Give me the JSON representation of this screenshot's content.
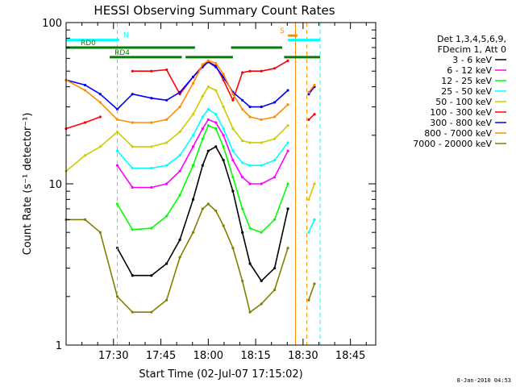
{
  "chart_data": {
    "type": "line",
    "title": "HESSI Observing Summary Count Rates",
    "xlabel": "Start Time (02-Jul-07 17:15:02)",
    "ylabel": "Count Rate (s⁻¹ detector⁻¹)",
    "y_scale": "log",
    "ylim": [
      1,
      100
    ],
    "xlim": [
      "17:15",
      "18:53"
    ],
    "x_ticks": [
      "17:30",
      "17:45",
      "18:00",
      "18:15",
      "18:30",
      "18:45"
    ],
    "y_ticks": [
      "1",
      "10",
      "100"
    ],
    "legend_position": "right",
    "legend_header": [
      "Det 1,3,4,5,6,9,",
      "FDecim 1, Att 0"
    ],
    "footer": "8-Jan-2010 04:53",
    "series": [
      {
        "name": "3 - 6 keV",
        "color": "#000000",
        "x": [
          17.25,
          17.35,
          17.43,
          17.52,
          17.6,
          17.7,
          17.78,
          17.85,
          17.92,
          17.97,
          18.0,
          18.04,
          18.08,
          18.13,
          18.18,
          18.22,
          18.28,
          18.35,
          18.42,
          18.48,
          18.53,
          18.56
        ],
        "y": [
          null,
          null,
          null,
          4.0,
          2.7,
          2.7,
          3.2,
          4.5,
          8,
          13,
          16,
          17,
          14,
          9,
          5,
          3.2,
          2.5,
          3,
          7,
          null,
          null,
          null
        ]
      },
      {
        "name": "6 - 12 keV",
        "color": "#ff00ff",
        "x": [
          17.25,
          17.35,
          17.43,
          17.52,
          17.6,
          17.7,
          17.78,
          17.85,
          17.92,
          17.97,
          18.0,
          18.04,
          18.08,
          18.13,
          18.18,
          18.22,
          18.28,
          18.35,
          18.42,
          18.48,
          18.53,
          18.56
        ],
        "y": [
          null,
          null,
          null,
          13,
          9.5,
          9.5,
          10,
          12,
          17,
          22,
          25,
          24,
          20,
          14,
          11,
          10,
          10,
          11,
          16,
          null,
          null,
          null
        ]
      },
      {
        "name": "12 - 25 keV",
        "color": "#00ff00",
        "x": [
          17.25,
          17.35,
          17.43,
          17.52,
          17.6,
          17.7,
          17.78,
          17.85,
          17.92,
          17.97,
          18.0,
          18.04,
          18.08,
          18.13,
          18.18,
          18.22,
          18.28,
          18.35,
          18.42,
          18.48,
          18.53,
          18.56
        ],
        "y": [
          null,
          null,
          null,
          7.5,
          5.2,
          5.3,
          6.3,
          8.5,
          13,
          19,
          23,
          22,
          17,
          11,
          7,
          5.3,
          5,
          6,
          10,
          null,
          null,
          null
        ]
      },
      {
        "name": "25 - 50 keV",
        "color": "#00ffff",
        "x": [
          17.25,
          17.35,
          17.43,
          17.52,
          17.6,
          17.7,
          17.78,
          17.85,
          17.92,
          17.97,
          18.0,
          18.04,
          18.08,
          18.13,
          18.18,
          18.22,
          18.28,
          18.35,
          18.42,
          18.48,
          18.53,
          18.56
        ],
        "y": [
          null,
          null,
          null,
          16,
          12.5,
          12.5,
          13,
          15,
          20,
          26,
          29,
          27,
          22,
          16,
          13.5,
          13,
          13,
          14,
          18,
          null,
          5,
          6
        ]
      },
      {
        "name": "50 - 100 keV",
        "color": "#cccc00",
        "x": [
          17.25,
          17.35,
          17.43,
          17.52,
          17.6,
          17.7,
          17.78,
          17.85,
          17.92,
          17.97,
          18.0,
          18.04,
          18.08,
          18.13,
          18.18,
          18.22,
          18.28,
          18.35,
          18.42,
          18.48,
          18.53,
          18.56
        ],
        "y": [
          12,
          15,
          17,
          21,
          17,
          17,
          18,
          21,
          27,
          35,
          40,
          38,
          30,
          22,
          18.5,
          18,
          18,
          19,
          23,
          null,
          8,
          10
        ]
      },
      {
        "name": "100 - 300 keV",
        "color": "#ff0000",
        "x": [
          17.25,
          17.35,
          17.43,
          17.52,
          17.6,
          17.7,
          17.78,
          17.85,
          17.92,
          17.97,
          18.0,
          18.04,
          18.08,
          18.13,
          18.18,
          18.22,
          18.28,
          18.35,
          18.42,
          18.48,
          18.53,
          18.56
        ],
        "y": [
          22,
          24,
          26,
          null,
          50,
          50,
          51,
          36,
          46,
          54,
          57,
          54,
          44,
          33,
          49,
          50,
          50,
          52,
          58,
          null,
          25,
          27
        ]
      },
      {
        "name": "300 - 800 keV",
        "color": "#0000ff",
        "x": [
          17.25,
          17.35,
          17.43,
          17.52,
          17.6,
          17.7,
          17.78,
          17.85,
          17.92,
          17.97,
          18.0,
          18.04,
          18.08,
          18.13,
          18.18,
          18.22,
          18.28,
          18.35,
          18.42,
          18.48,
          18.53,
          18.56
        ],
        "y": [
          44,
          41,
          36,
          29,
          36,
          34,
          33,
          37,
          46,
          53,
          57,
          53,
          46,
          37,
          33,
          30,
          30,
          32,
          38,
          null,
          36,
          40
        ]
      },
      {
        "name": "800 - 7000 keV",
        "color": "#ff8c00",
        "x": [
          17.25,
          17.35,
          17.43,
          17.52,
          17.6,
          17.7,
          17.78,
          17.85,
          17.92,
          17.97,
          18.0,
          18.04,
          18.08,
          18.13,
          18.18,
          18.22,
          18.28,
          18.35,
          18.42,
          18.48,
          18.53,
          18.56
        ],
        "y": [
          44,
          38,
          32,
          25,
          24,
          24,
          25,
          30,
          42,
          55,
          58,
          56,
          48,
          36,
          29,
          26,
          25,
          26,
          31,
          null,
          37,
          41
        ]
      },
      {
        "name": "7000 - 20000 keV",
        "color": "#808000",
        "x": [
          17.25,
          17.35,
          17.43,
          17.52,
          17.6,
          17.7,
          17.78,
          17.85,
          17.92,
          17.97,
          18.0,
          18.04,
          18.08,
          18.13,
          18.18,
          18.22,
          18.28,
          18.35,
          18.42,
          18.48,
          18.53,
          18.56
        ],
        "y": [
          6,
          6,
          5,
          2.0,
          1.6,
          1.6,
          1.9,
          3.5,
          5,
          7,
          7.5,
          6.8,
          5.5,
          4,
          2.5,
          1.6,
          1.8,
          2.2,
          4,
          null,
          1.9,
          2.4
        ]
      }
    ],
    "flag_bars": [
      {
        "label": "N",
        "color": "#00ffff",
        "x0": 17.25,
        "x1": 17.53,
        "y": 78
      },
      {
        "label": "RD0",
        "color": "#008000",
        "x0": 17.25,
        "x1": 17.93,
        "y": 70
      },
      {
        "label": "RD4",
        "color": "#008000",
        "x0": 17.48,
        "x1": 17.86,
        "y": 61
      },
      {
        "label": "",
        "color": "#008000",
        "x0": 17.88,
        "x1": 18.13,
        "y": 61
      },
      {
        "label": "",
        "color": "#008000",
        "x0": 18.12,
        "x1": 18.39,
        "y": 70
      },
      {
        "label": "",
        "color": "#008000",
        "x0": 18.4,
        "x1": 18.59,
        "y": 61
      },
      {
        "label": "S",
        "color": "#ff8c00",
        "x0": 18.42,
        "x1": 18.47,
        "y": 83
      },
      {
        "label": "",
        "color": "#00ffff",
        "x0": 18.42,
        "x1": 18.59,
        "y": 78
      }
    ],
    "vertical_markers": [
      {
        "x": 17.52,
        "color": "#00ffff",
        "style": "dashed"
      },
      {
        "x": 18.46,
        "color": "#ff8c00",
        "style": "solid"
      },
      {
        "x": 18.52,
        "color": "#ff8c00",
        "style": "dashed"
      },
      {
        "x": 18.59,
        "color": "#00ffff",
        "style": "dashed"
      }
    ]
  }
}
